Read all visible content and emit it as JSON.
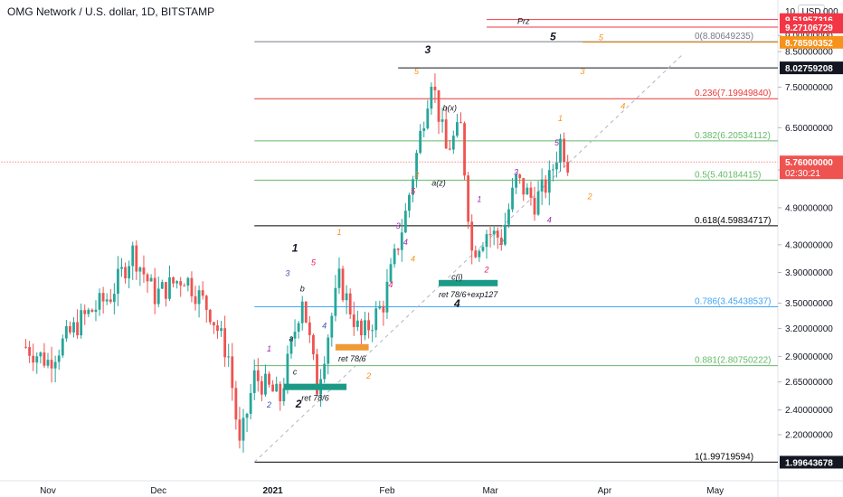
{
  "header": {
    "title": "OMG Network / U.S. dollar, 1D, BITSTAMP",
    "currency_button": "USD",
    "axis_top_left": "10.",
    "axis_top_right": "000"
  },
  "colors": {
    "up": "#26a69a",
    "down": "#ef5350",
    "fib_red": "#e53935",
    "fib_green": "#66bb6a",
    "fib_blue": "#42a5f5",
    "fib_black": "#000000",
    "fib_gray": "#787b86",
    "zone_teal": "#1b9b87",
    "zone_orange": "#f09a36",
    "label_red": "#f23645",
    "label_orange": "#f7931a",
    "label_black": "#131722",
    "wave_purple": "#9c27b0",
    "wave_orange": "#f39c12",
    "wave_red": "#e91e63",
    "wave_blue": "#3f51b5",
    "wave_gray": "#888888",
    "current_red": "#ef5350"
  },
  "chart_data": {
    "type": "candlestick",
    "title": "OMG Network / U.S. dollar, 1D, BITSTAMP",
    "y_scale": "log",
    "ylim": [
      1.87,
      10.2
    ],
    "x_ticks": [
      {
        "label": "Nov",
        "date": "2020-11-01"
      },
      {
        "label": "Dec",
        "date": "2020-12-01"
      },
      {
        "label": "2021",
        "date": "2021-01-01"
      },
      {
        "label": "Feb",
        "date": "2021-02-01"
      },
      {
        "label": "Mar",
        "date": "2021-03-01"
      },
      {
        "label": "Apr",
        "date": "2021-04-01"
      },
      {
        "label": "May",
        "date": "2021-05-01"
      }
    ],
    "y_ticks": [
      "9.00000000",
      "8.50000000",
      "7.50000000",
      "6.50000000",
      "5.60000000",
      "4.90000000",
      "4.30000000",
      "3.90000000",
      "3.50000000",
      "3.20000000",
      "2.90000000",
      "2.65000000",
      "2.40000000",
      "2.20000000"
    ],
    "candle_anchors": [
      {
        "date": "2020-10-26",
        "price": 3.0
      },
      {
        "date": "2020-11-01",
        "price": 2.85
      },
      {
        "date": "2020-11-10",
        "price": 3.3
      },
      {
        "date": "2020-11-18",
        "price": 3.6
      },
      {
        "date": "2020-11-24",
        "price": 4.2
      },
      {
        "date": "2020-11-30",
        "price": 3.6
      },
      {
        "date": "2020-12-08",
        "price": 3.85
      },
      {
        "date": "2020-12-15",
        "price": 3.4
      },
      {
        "date": "2020-12-20",
        "price": 2.9
      },
      {
        "date": "2020-12-23",
        "price": 2.1
      },
      {
        "date": "2020-12-27",
        "price": 2.7
      },
      {
        "date": "2021-01-03",
        "price": 2.5
      },
      {
        "date": "2021-01-09",
        "price": 3.6
      },
      {
        "date": "2021-01-13",
        "price": 2.6
      },
      {
        "date": "2021-01-19",
        "price": 3.8
      },
      {
        "date": "2021-01-25",
        "price": 3.1
      },
      {
        "date": "2021-01-31",
        "price": 3.5
      },
      {
        "date": "2021-02-06",
        "price": 4.8
      },
      {
        "date": "2021-02-13",
        "price": 7.8
      },
      {
        "date": "2021-02-17",
        "price": 6.0
      },
      {
        "date": "2021-02-21",
        "price": 6.5
      },
      {
        "date": "2021-02-24",
        "price": 4.2
      },
      {
        "date": "2021-02-28",
        "price": 4.5
      },
      {
        "date": "2021-03-04",
        "price": 4.4
      },
      {
        "date": "2021-03-08",
        "price": 5.4
      },
      {
        "date": "2021-03-13",
        "price": 5.0
      },
      {
        "date": "2021-03-17",
        "price": 5.4
      },
      {
        "date": "2021-03-20",
        "price": 6.2
      },
      {
        "date": "2021-03-22",
        "price": 5.76
      }
    ],
    "fib_levels": [
      {
        "ratio": "0",
        "price": 8.80649235,
        "label": "0(8.80649235)",
        "color": "#787b86"
      },
      {
        "ratio": "0.236",
        "price": 7.1994984,
        "label": "0.236(7.19949840)",
        "color": "#e53935"
      },
      {
        "ratio": "0.382",
        "price": 6.20534112,
        "label": "0.382(6.20534112)",
        "color": "#66bb6a"
      },
      {
        "ratio": "0.5",
        "price": 5.40184415,
        "label": "0.5(5.40184415)",
        "color": "#66bb6a"
      },
      {
        "ratio": "0.618",
        "price": 4.59834717,
        "label": "0.618(4.59834717)",
        "color": "#000000"
      },
      {
        "ratio": "0.786",
        "price": 3.45438537,
        "label": "0.786(3.45438537)",
        "color": "#42a5f5"
      },
      {
        "ratio": "0.881",
        "price": 2.80750222,
        "label": "0.881(2.80750222)",
        "color": "#66bb6a"
      },
      {
        "ratio": "1",
        "price": 1.99719594,
        "label": "1(1.99719594)",
        "color": "#000000"
      }
    ],
    "price_labels": [
      {
        "value": "9.51957316",
        "price": 9.51957316,
        "bg": "#f23645",
        "fg": "#ffffff"
      },
      {
        "value": "9.27106729",
        "price": 9.27106729,
        "bg": "#f23645",
        "fg": "#ffffff"
      },
      {
        "value": "8.78590352",
        "price": 8.78590352,
        "bg": "#f7931a",
        "fg": "#ffffff"
      },
      {
        "value": "8.02759208",
        "price": 8.02759208,
        "bg": "#131722",
        "fg": "#ffffff"
      },
      {
        "value": "5.76000000",
        "price": 5.76,
        "bg": "#ef5350",
        "fg": "#ffffff",
        "sub": "02:30:21"
      },
      {
        "value": "1.99643678",
        "price": 1.99643678,
        "bg": "#131722",
        "fg": "#ffffff"
      }
    ],
    "horizontal_lines": [
      {
        "price": 9.51957316,
        "color": "#f23645",
        "from": "2021-02-28"
      },
      {
        "price": 9.27106729,
        "color": "#f23645",
        "from": "2021-02-28"
      },
      {
        "price": 8.78590352,
        "color": "#f7931a",
        "from": "2021-03-26"
      },
      {
        "price": 8.02759208,
        "color": "#131722",
        "from": "2021-02-04"
      },
      {
        "price": 5.76,
        "color": "#ef5350",
        "from": "2020-10-01",
        "dotted": true
      }
    ],
    "zones": [
      {
        "label": "ret 78/6",
        "from": "2021-01-04",
        "to": "2021-01-21",
        "price": 2.6,
        "color": "#1b9b87"
      },
      {
        "label": "ret 78/6",
        "from": "2021-01-18",
        "to": "2021-01-27",
        "price": 2.99,
        "color": "#f09a36"
      },
      {
        "label": "ret 78/6+exp127",
        "from": "2021-02-15",
        "to": "2021-03-03",
        "price": 3.75,
        "color": "#1b9b87"
      }
    ],
    "annotations": [
      {
        "text": "Prz",
        "date": "2021-03-10",
        "price": 9.38,
        "color": "#131722",
        "italic": true
      },
      {
        "text": "5",
        "date": "2021-03-18",
        "price": 8.85,
        "color": "#131722",
        "bold": true,
        "size": 12
      },
      {
        "text": "5",
        "date": "2021-03-31",
        "price": 8.85,
        "color": "#f7931a",
        "size": 9
      },
      {
        "text": "3",
        "date": "2021-02-12",
        "price": 8.45,
        "color": "#131722",
        "bold": true,
        "size": 12
      },
      {
        "text": "5",
        "date": "2021-02-09",
        "price": 7.85,
        "color": "#f7931a",
        "size": 9
      },
      {
        "text": "3",
        "date": "2021-03-26",
        "price": 7.85,
        "color": "#f7931a",
        "size": 9
      },
      {
        "text": "4",
        "date": "2021-04-06",
        "price": 6.95,
        "color": "#f7931a",
        "size": 9
      },
      {
        "text": "b(x)",
        "date": "2021-02-18",
        "price": 6.9,
        "color": "#131722",
        "size": 9
      },
      {
        "text": "1",
        "date": "2021-03-20",
        "price": 6.65,
        "color": "#f7931a",
        "size": 9
      },
      {
        "text": "5",
        "date": "2021-03-19",
        "price": 6.1,
        "color": "#9c27b0",
        "size": 9
      },
      {
        "text": "a(z)",
        "date": "2021-02-15",
        "price": 5.3,
        "color": "#131722",
        "size": 9
      },
      {
        "text": "2",
        "date": "2021-03-28",
        "price": 5.05,
        "color": "#f7931a",
        "size": 9
      },
      {
        "text": "4",
        "date": "2021-03-17",
        "price": 4.65,
        "color": "#9c27b0",
        "size": 9
      },
      {
        "text": "1",
        "date": "2021-01-07",
        "price": 4.2,
        "color": "#131722",
        "bold": true,
        "size": 12
      },
      {
        "text": "c(i)",
        "date": "2021-02-20",
        "price": 3.8,
        "color": "#131722",
        "size": 9
      },
      {
        "text": "4",
        "date": "2021-02-20",
        "price": 3.45,
        "color": "#131722",
        "bold": true,
        "size": 12
      },
      {
        "text": "2",
        "date": "2021-01-08",
        "price": 2.42,
        "color": "#131722",
        "bold": true,
        "size": 12
      },
      {
        "text": "c",
        "date": "2021-01-07",
        "price": 2.72,
        "color": "#131722",
        "size": 9
      },
      {
        "text": "a",
        "date": "2021-01-06",
        "price": 3.06,
        "color": "#131722",
        "size": 9
      },
      {
        "text": "b",
        "date": "2021-01-09",
        "price": 3.65,
        "color": "#131722",
        "size": 9
      },
      {
        "text": "2",
        "date": "2021-01-27",
        "price": 2.68,
        "color": "#f7931a",
        "size": 9
      },
      {
        "text": "4",
        "date": "2021-02-08",
        "price": 4.05,
        "color": "#f7931a",
        "size": 9
      },
      {
        "text": "1",
        "date": "2021-01-19",
        "price": 4.45,
        "color": "#f7931a",
        "size": 9
      },
      {
        "text": "3",
        "date": "2021-02-09",
        "price": 5.45,
        "color": "#f7931a",
        "size": 9
      },
      {
        "text": "4",
        "date": "2021-02-02",
        "price": 3.7,
        "color": "#e91e63",
        "size": 9
      },
      {
        "text": "5",
        "date": "2021-02-08",
        "price": 5.15,
        "color": "#e91e63",
        "size": 9
      },
      {
        "text": "1",
        "date": "2021-02-26",
        "price": 5.0,
        "color": "#9c27b0",
        "size": 9
      },
      {
        "text": "2",
        "date": "2021-02-28",
        "price": 3.9,
        "color": "#e91e63",
        "size": 9
      },
      {
        "text": "3",
        "date": "2021-03-08",
        "price": 5.5,
        "color": "#9c27b0",
        "size": 9
      },
      {
        "text": "2",
        "date": "2021-03-04",
        "price": 4.3,
        "color": "#888888",
        "size": 9
      },
      {
        "text": "1",
        "date": "2020-12-31",
        "price": 2.95,
        "color": "#9c27b0",
        "size": 9
      },
      {
        "text": "2",
        "date": "2020-12-31",
        "price": 2.42,
        "color": "#3f51b5",
        "size": 9
      },
      {
        "text": "3",
        "date": "2021-01-05",
        "price": 3.85,
        "color": "#3f51b5",
        "size": 9
      },
      {
        "text": "5",
        "date": "2021-01-12",
        "price": 4.0,
        "color": "#e91e63",
        "size": 9
      },
      {
        "text": "4",
        "date": "2021-01-15",
        "price": 3.2,
        "color": "#3f51b5",
        "size": 9
      },
      {
        "text": "3",
        "date": "2021-02-04",
        "price": 4.55,
        "color": "#9c27b0",
        "size": 9
      },
      {
        "text": "4",
        "date": "2021-02-06",
        "price": 4.3,
        "color": "#9c27b0",
        "size": 9
      }
    ],
    "trend_line": {
      "from_date": "2020-12-27",
      "from_price": 1.997,
      "to_date": "2021-04-22",
      "to_price": 8.4,
      "dashed": true
    }
  }
}
